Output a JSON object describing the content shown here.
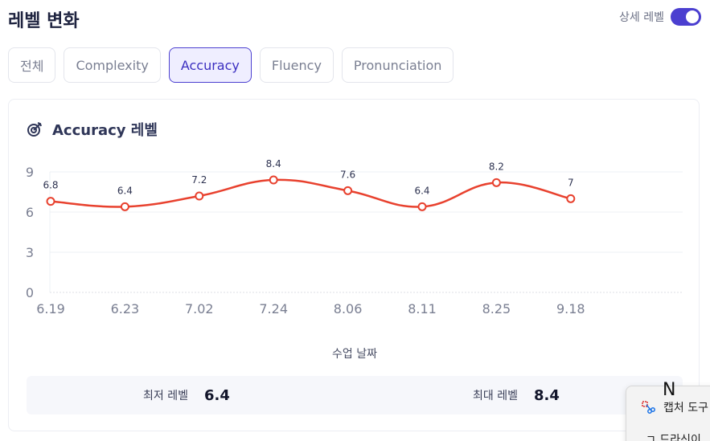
{
  "header": {
    "title": "레벨 변화",
    "toggle_label": "상세 레벨",
    "toggle_on": true,
    "accent_color": "#4b3fd0"
  },
  "tabs": [
    {
      "label": "전체",
      "active": false
    },
    {
      "label": "Complexity",
      "active": false
    },
    {
      "label": "Accuracy",
      "active": true
    },
    {
      "label": "Fluency",
      "active": false
    },
    {
      "label": "Pronunciation",
      "active": false
    }
  ],
  "card": {
    "title": "Accuracy 레벨",
    "icon": "target-icon"
  },
  "chart_data": {
    "type": "line",
    "categories": [
      "6.19",
      "6.23",
      "7.02",
      "7.24",
      "8.06",
      "8.11",
      "8.25",
      "9.18"
    ],
    "values": [
      6.8,
      6.4,
      7.2,
      8.4,
      7.6,
      6.4,
      8.2,
      7
    ],
    "value_labels": [
      "6.8",
      "6.4",
      "7.2",
      "8.4",
      "7.6",
      "6.4",
      "8.2",
      "7"
    ],
    "yticks": [
      0,
      3,
      6,
      9
    ],
    "ylim": [
      0,
      9
    ],
    "xlabel": "수업 날짜",
    "line_color": "#e8412e",
    "grid": true
  },
  "summary": {
    "min_label": "최저 레벨",
    "min_value": "6.4",
    "max_label": "최대 레벨",
    "max_value": "8.4"
  },
  "popup": {
    "key_letter": "N",
    "item1": "캡처 도구",
    "item2": "ㄱ 드라신이"
  }
}
